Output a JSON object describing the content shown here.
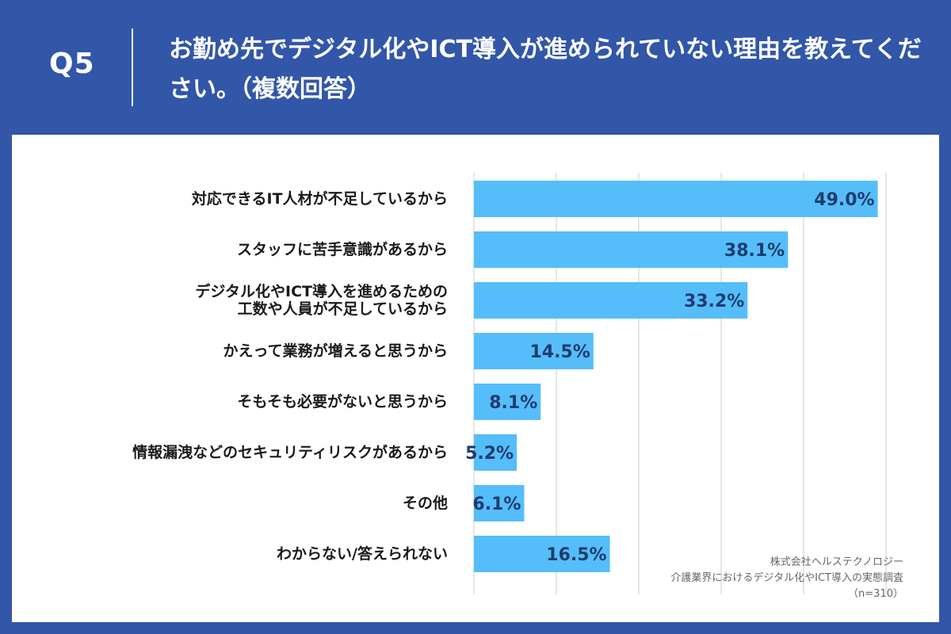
{
  "header": {
    "q_number": "Q5",
    "title": "お勤め先でデジタル化やICT導入が進められていない理由を教えてください。（複数回答）"
  },
  "source": {
    "company": "株式会社ヘルステクノロジー",
    "survey": "介護業界におけるデジタル化やICT導入の実態調査",
    "sample": "（n=310）"
  },
  "colors": {
    "background": "#3256a8",
    "bar": "#56bdfb",
    "value_text": "#1e3d6e",
    "grid": "#cccccc"
  },
  "chart_data": {
    "type": "bar",
    "orientation": "horizontal",
    "categories": [
      "対応できるIT人材が不足しているから",
      "スタッフに苦手意識があるから",
      "デジタル化やICT導入を進めるための\n工数や人員が不足しているから",
      "かえって業務が増えると思うから",
      "そもそも必要がないと思うから",
      "情報漏洩などのセキュリティリスクがあるから",
      "その他",
      "わからない/答えられない"
    ],
    "values": [
      49.0,
      38.1,
      33.2,
      14.5,
      8.1,
      5.2,
      6.1,
      16.5
    ],
    "value_labels": [
      "49.0%",
      "38.1%",
      "33.2%",
      "14.5%",
      "8.1%",
      "5.2%",
      "6.1%",
      "16.5%"
    ],
    "unit": "%",
    "xlim": [
      0,
      50
    ],
    "grid": true
  }
}
